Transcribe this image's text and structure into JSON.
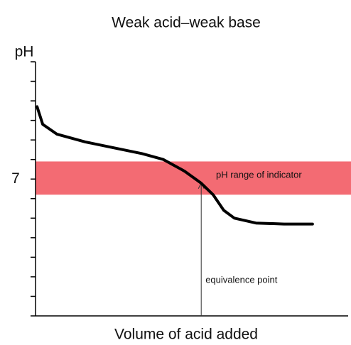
{
  "chart_data": {
    "type": "line",
    "title": "Weak acid–weak base",
    "ylabel": "pH",
    "xlabel": "Volume of acid added",
    "xlim": [
      0,
      100
    ],
    "ylim": [
      0,
      13
    ],
    "yticks": [
      {
        "value": 0,
        "label": null
      },
      {
        "value": 1,
        "label": null
      },
      {
        "value": 2,
        "label": null
      },
      {
        "value": 3,
        "label": null
      },
      {
        "value": 4,
        "label": null
      },
      {
        "value": 5,
        "label": null
      },
      {
        "value": 6,
        "label": null
      },
      7,
      {
        "value": 8,
        "label": null
      },
      {
        "value": 9,
        "label": null
      },
      {
        "value": 10,
        "label": null
      },
      {
        "value": 11,
        "label": null
      },
      {
        "value": 12,
        "label": null
      },
      {
        "value": 13,
        "label": null
      }
    ],
    "series": [
      {
        "color": "#000000",
        "x": [
          0.5,
          2.3,
          6.8,
          15.9,
          25,
          34.1,
          40.9,
          47.7,
          52.9,
          56.8,
          60.2,
          63.6,
          70.5,
          79.5,
          88.6
        ],
        "values": [
          10.7,
          9.8,
          9.3,
          8.9,
          8.6,
          8.3,
          8.0,
          7.4,
          6.8,
          6.2,
          5.4,
          5.0,
          4.75,
          4.7,
          4.7
        ]
      }
    ],
    "indicator_range": {
      "range": [
        6.2,
        7.9
      ],
      "color": "#f36b73",
      "label": "pH range of indicator"
    },
    "equivalence_point": {
      "x": 53,
      "y": 6.8,
      "label": "equivalence point"
    }
  }
}
